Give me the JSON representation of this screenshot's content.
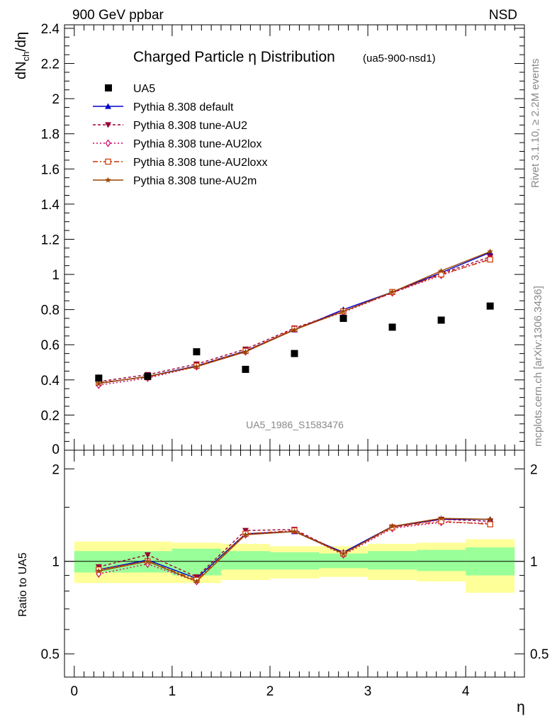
{
  "header": {
    "left": "900 GeV ppbar",
    "right": "NSD"
  },
  "side_labels": {
    "rivet": "Rivet 3.1.10, ≥ 2.2M events",
    "mcplots": "mcplots.cern.ch [arXiv:1306.3436]"
  },
  "colors": {
    "band_inner": "#99ff99",
    "band_outer": "#ffff99",
    "ratio_line": "#000000",
    "grey_text": "#888888"
  },
  "chart_data": [
    {
      "type": "line",
      "title": "Charged Particle η Distribution",
      "subtitle": "(ua5-900-nsd1)",
      "watermark": "UA5_1986_S1583476",
      "ylabel": "dNch/dη",
      "xlim": [
        -0.1,
        4.6
      ],
      "ylim": [
        0,
        2.42
      ],
      "yticks": [
        0.2,
        0.4,
        0.6,
        0.8,
        1,
        1.2,
        1.4,
        1.6,
        1.8,
        2,
        2.2,
        2.4
      ],
      "yticklabels": [
        "0.2",
        "0.4",
        "0.6",
        "0.8",
        "1",
        "1.2",
        "1.4",
        "1.6",
        "1.8",
        "2",
        "2.2",
        "2.4"
      ],
      "bottom_tick_label": "0",
      "x": [
        0.25,
        0.75,
        1.25,
        1.75,
        2.25,
        2.75,
        3.25,
        3.75,
        4.25
      ],
      "data_series": {
        "name": "UA5",
        "values": [
          0.41,
          0.42,
          0.56,
          0.46,
          0.55,
          0.75,
          0.7,
          0.74,
          0.82
        ]
      },
      "series": [
        {
          "name": "Pythia 8.308 default",
          "color": "#0000cc",
          "dash": "",
          "marker": "triangle-up",
          "values": [
            0.38,
            0.42,
            0.48,
            0.565,
            0.685,
            0.8,
            0.9,
            1.01,
            1.125
          ]
        },
        {
          "name": "Pythia 8.308 tune-AU2",
          "color": "#990033",
          "dash": "4,3",
          "marker": "triangle-down",
          "values": [
            0.39,
            0.43,
            0.49,
            0.575,
            0.695,
            0.79,
            0.895,
            1.005,
            1.1
          ]
        },
        {
          "name": "Pythia 8.308 tune-AU2lox",
          "color": "#cc0066",
          "dash": "2,3",
          "marker": "diamond-open",
          "values": [
            0.37,
            0.41,
            0.475,
            0.56,
            0.69,
            0.785,
            0.895,
            0.995,
            1.09
          ]
        },
        {
          "name": "Pythia 8.308 tune-AU2loxx",
          "color": "#cc3300",
          "dash": "7,3,2,3",
          "marker": "square-open",
          "values": [
            0.385,
            0.415,
            0.48,
            0.565,
            0.69,
            0.79,
            0.9,
            1.0,
            1.085
          ]
        },
        {
          "name": "Pythia 8.308 tune-AU2m",
          "color": "#994400",
          "dash": "",
          "marker": "star",
          "values": [
            0.38,
            0.42,
            0.475,
            0.56,
            0.685,
            0.79,
            0.9,
            1.02,
            1.13
          ]
        }
      ],
      "legend_position": "top-left"
    },
    {
      "type": "line",
      "ylabel": "Ratio to UA5",
      "xlabel": "η",
      "scale": "log",
      "ylim": [
        0.42,
        2.3
      ],
      "yticks": [
        0.5,
        1,
        2
      ],
      "yticklabels": [
        "0.5",
        "1",
        "2"
      ],
      "xticks": [
        0,
        1,
        2,
        3,
        4
      ],
      "xticklabels": [
        "0",
        "1",
        "2",
        "3",
        "4"
      ],
      "bins": [
        [
          0.0,
          1.0
        ],
        [
          1.0,
          1.5
        ],
        [
          1.5,
          2.0
        ],
        [
          2.0,
          2.5
        ],
        [
          2.5,
          3.0
        ],
        [
          3.0,
          3.5
        ],
        [
          3.5,
          4.0
        ],
        [
          4.0,
          4.5
        ]
      ],
      "band_inner": [
        [
          0.92,
          1.08
        ],
        [
          0.9,
          1.1
        ],
        [
          0.94,
          1.08
        ],
        [
          0.94,
          1.07
        ],
        [
          0.95,
          1.06
        ],
        [
          0.94,
          1.08
        ],
        [
          0.93,
          1.09
        ],
        [
          0.9,
          1.11
        ]
      ],
      "band_outer": [
        [
          0.85,
          1.16
        ],
        [
          0.85,
          1.15
        ],
        [
          0.87,
          1.14
        ],
        [
          0.88,
          1.12
        ],
        [
          0.89,
          1.12
        ],
        [
          0.87,
          1.14
        ],
        [
          0.86,
          1.15
        ],
        [
          0.79,
          1.18
        ]
      ],
      "x": [
        0.25,
        0.75,
        1.25,
        1.75,
        2.25,
        2.75,
        3.25,
        3.75,
        4.25
      ],
      "series": [
        {
          "name": "Pythia 8.308 default",
          "values": [
            0.94,
            1.01,
            0.88,
            1.23,
            1.25,
            1.07,
            1.3,
            1.37,
            1.37
          ]
        },
        {
          "name": "Pythia 8.308 tune-AU2",
          "values": [
            0.96,
            1.05,
            0.89,
            1.26,
            1.27,
            1.06,
            1.29,
            1.37,
            1.35
          ]
        },
        {
          "name": "Pythia 8.308 tune-AU2lox",
          "values": [
            0.91,
            0.98,
            0.86,
            1.22,
            1.26,
            1.05,
            1.28,
            1.34,
            1.33
          ]
        },
        {
          "name": "Pythia 8.308 tune-AU2loxx",
          "values": [
            0.94,
            1.0,
            0.87,
            1.23,
            1.26,
            1.06,
            1.29,
            1.35,
            1.32
          ]
        },
        {
          "name": "Pythia 8.308 tune-AU2m",
          "values": [
            0.93,
            1.0,
            0.86,
            1.22,
            1.25,
            1.06,
            1.3,
            1.38,
            1.37
          ]
        }
      ]
    }
  ]
}
